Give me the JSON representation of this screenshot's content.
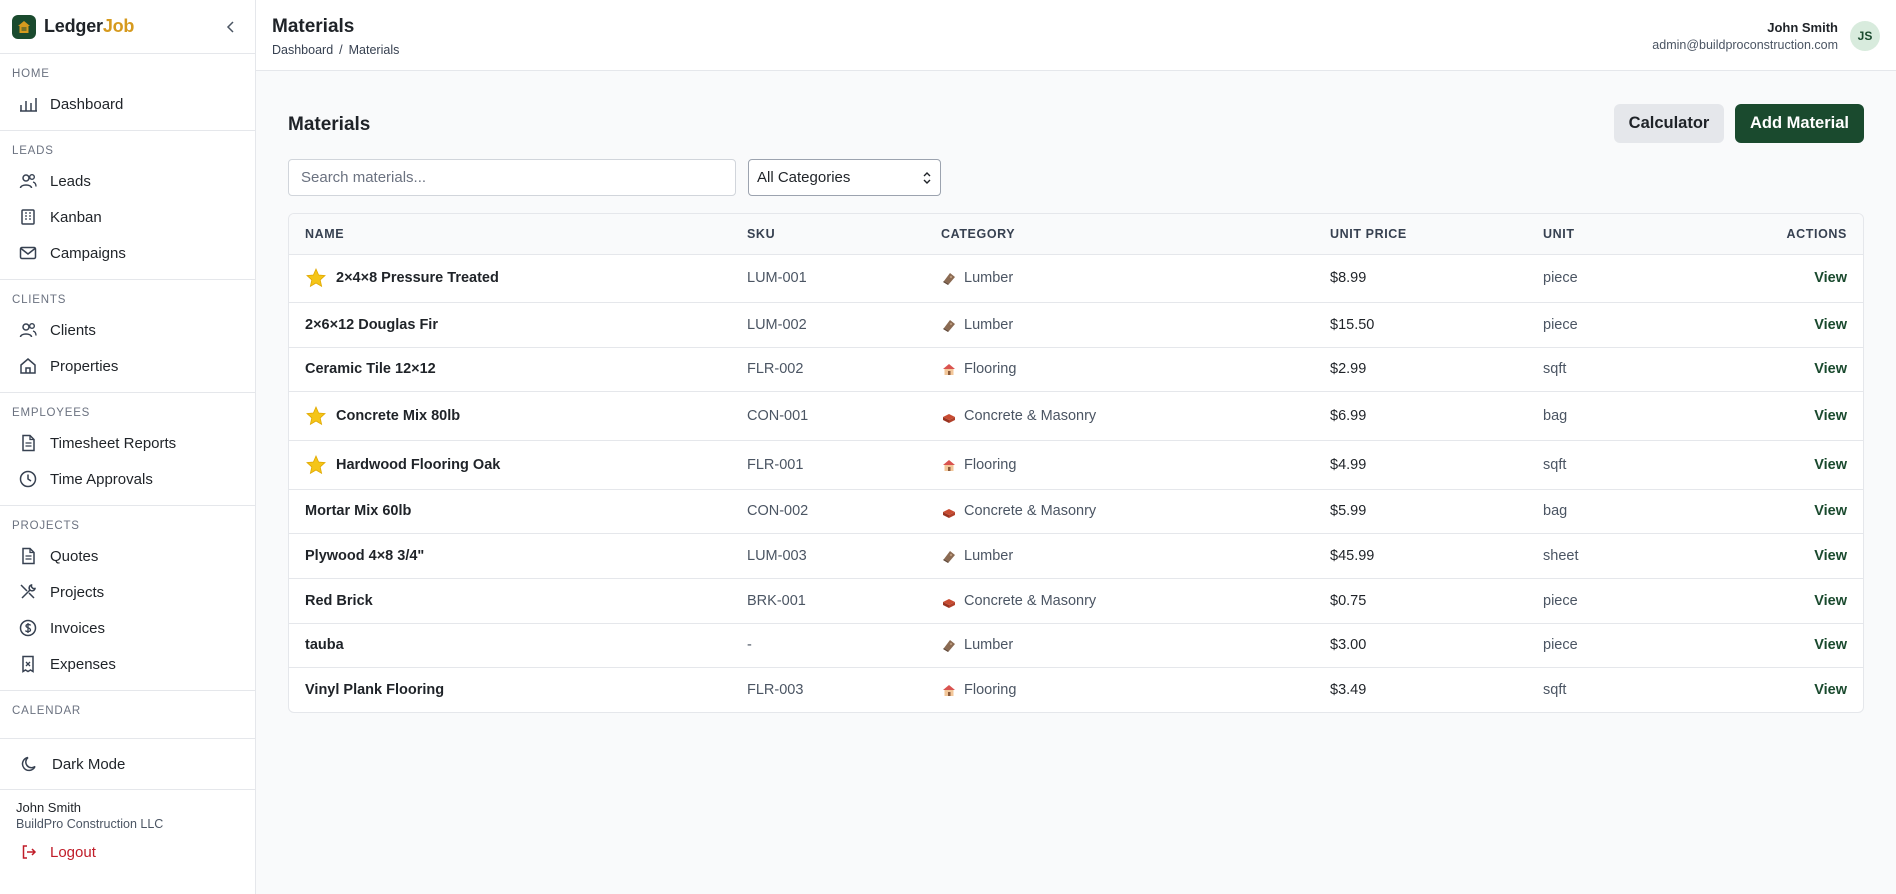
{
  "brand": {
    "name_part1": "Ledger",
    "name_part2": "Job"
  },
  "sidebar": {
    "sections": [
      {
        "label": "HOME",
        "items": [
          {
            "label": "Dashboard",
            "icon": "bar-chart-icon"
          }
        ]
      },
      {
        "label": "LEADS",
        "items": [
          {
            "label": "Leads",
            "icon": "users-icon"
          },
          {
            "label": "Kanban",
            "icon": "building-icon"
          },
          {
            "label": "Campaigns",
            "icon": "mail-icon"
          }
        ]
      },
      {
        "label": "CLIENTS",
        "items": [
          {
            "label": "Clients",
            "icon": "users-icon"
          },
          {
            "label": "Properties",
            "icon": "home-icon"
          }
        ]
      },
      {
        "label": "EMPLOYEES",
        "items": [
          {
            "label": "Timesheet Reports",
            "icon": "file-icon"
          },
          {
            "label": "Time Approvals",
            "icon": "clock-icon"
          }
        ]
      },
      {
        "label": "PROJECTS",
        "items": [
          {
            "label": "Quotes",
            "icon": "file-icon"
          },
          {
            "label": "Projects",
            "icon": "tools-icon"
          },
          {
            "label": "Invoices",
            "icon": "dollar-circle-icon"
          },
          {
            "label": "Expenses",
            "icon": "receipt-icon"
          }
        ]
      },
      {
        "label": "CALENDAR",
        "items": []
      }
    ],
    "dark_mode_label": "Dark Mode",
    "user_name": "John Smith",
    "user_company": "BuildPro Construction LLC",
    "logout_label": "Logout"
  },
  "header": {
    "title": "Materials",
    "breadcrumb": [
      "Dashboard",
      "Materials"
    ],
    "user_name": "John Smith",
    "user_email": "admin@buildproconstruction.com",
    "avatar_initials": "JS"
  },
  "main": {
    "title": "Materials",
    "calculator_label": "Calculator",
    "add_label": "Add Material",
    "search_placeholder": "Search materials...",
    "category_selected": "All Categories",
    "table": {
      "columns": [
        "NAME",
        "SKU",
        "CATEGORY",
        "UNIT PRICE",
        "UNIT",
        "ACTIONS"
      ],
      "rows": [
        {
          "name": "2×4×8 Pressure Treated",
          "starred": true,
          "sku": "LUM-001",
          "category": "Lumber",
          "cat_icon": "lumber-icon",
          "price": "$8.99",
          "unit": "piece",
          "action": "View"
        },
        {
          "name": "2×6×12 Douglas Fir",
          "starred": false,
          "sku": "LUM-002",
          "category": "Lumber",
          "cat_icon": "lumber-icon",
          "price": "$15.50",
          "unit": "piece",
          "action": "View"
        },
        {
          "name": "Ceramic Tile 12×12",
          "starred": false,
          "sku": "FLR-002",
          "category": "Flooring",
          "cat_icon": "flooring-icon",
          "price": "$2.99",
          "unit": "sqft",
          "action": "View"
        },
        {
          "name": "Concrete Mix 80lb",
          "starred": true,
          "sku": "CON-001",
          "category": "Concrete & Masonry",
          "cat_icon": "brick-icon",
          "price": "$6.99",
          "unit": "bag",
          "action": "View"
        },
        {
          "name": "Hardwood Flooring Oak",
          "starred": true,
          "sku": "FLR-001",
          "category": "Flooring",
          "cat_icon": "flooring-icon",
          "price": "$4.99",
          "unit": "sqft",
          "action": "View"
        },
        {
          "name": "Mortar Mix 60lb",
          "starred": false,
          "sku": "CON-002",
          "category": "Concrete & Masonry",
          "cat_icon": "brick-icon",
          "price": "$5.99",
          "unit": "bag",
          "action": "View"
        },
        {
          "name": "Plywood 4×8 3/4\"",
          "starred": false,
          "sku": "LUM-003",
          "category": "Lumber",
          "cat_icon": "lumber-icon",
          "price": "$45.99",
          "unit": "sheet",
          "action": "View"
        },
        {
          "name": "Red Brick",
          "starred": false,
          "sku": "BRK-001",
          "category": "Concrete & Masonry",
          "cat_icon": "brick-icon",
          "price": "$0.75",
          "unit": "piece",
          "action": "View"
        },
        {
          "name": "tauba",
          "starred": false,
          "sku": "-",
          "category": "Lumber",
          "cat_icon": "lumber-icon",
          "price": "$3.00",
          "unit": "piece",
          "action": "View"
        },
        {
          "name": "Vinyl Plank Flooring",
          "starred": false,
          "sku": "FLR-003",
          "category": "Flooring",
          "cat_icon": "flooring-icon",
          "price": "$3.49",
          "unit": "sqft",
          "action": "View"
        }
      ]
    }
  },
  "colors": {
    "accent": "#1a4a2e",
    "brand_gold": "#d69a1e",
    "danger": "#c01c28",
    "star": "#f5c518"
  }
}
